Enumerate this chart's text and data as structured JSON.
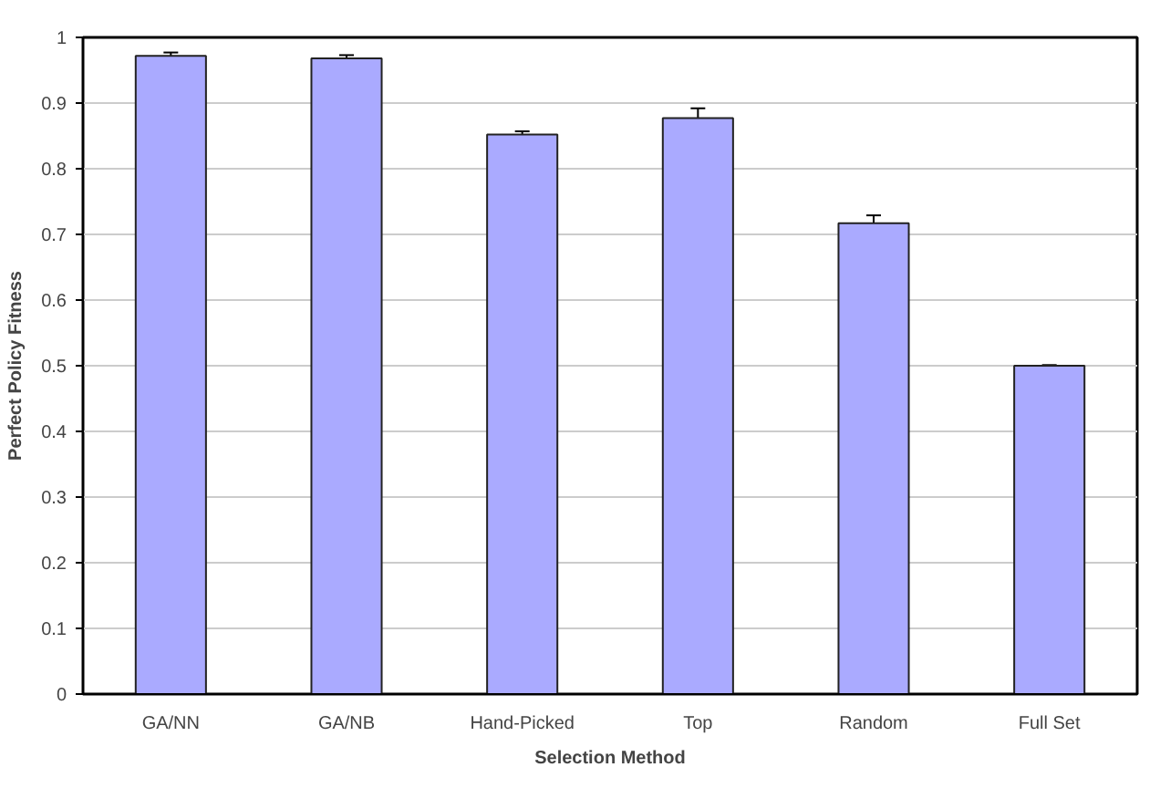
{
  "chart_data": {
    "type": "bar",
    "xlabel": "Selection Method",
    "ylabel": "Perfect Policy Fitness",
    "categories": [
      "GA/NN",
      "GA/NB",
      "Hand-Picked",
      "Top",
      "Random",
      "Full Set"
    ],
    "values": [
      0.972,
      0.968,
      0.852,
      0.877,
      0.717,
      0.5
    ],
    "errors": [
      0.005,
      0.005,
      0.005,
      0.015,
      0.012,
      0.001
    ],
    "color": "#aaaaff",
    "ylim": [
      0,
      1
    ],
    "yticks": [
      0,
      0.1,
      0.2,
      0.3,
      0.4,
      0.5,
      0.6,
      0.7,
      0.8,
      0.9,
      1
    ],
    "grid": "y"
  }
}
